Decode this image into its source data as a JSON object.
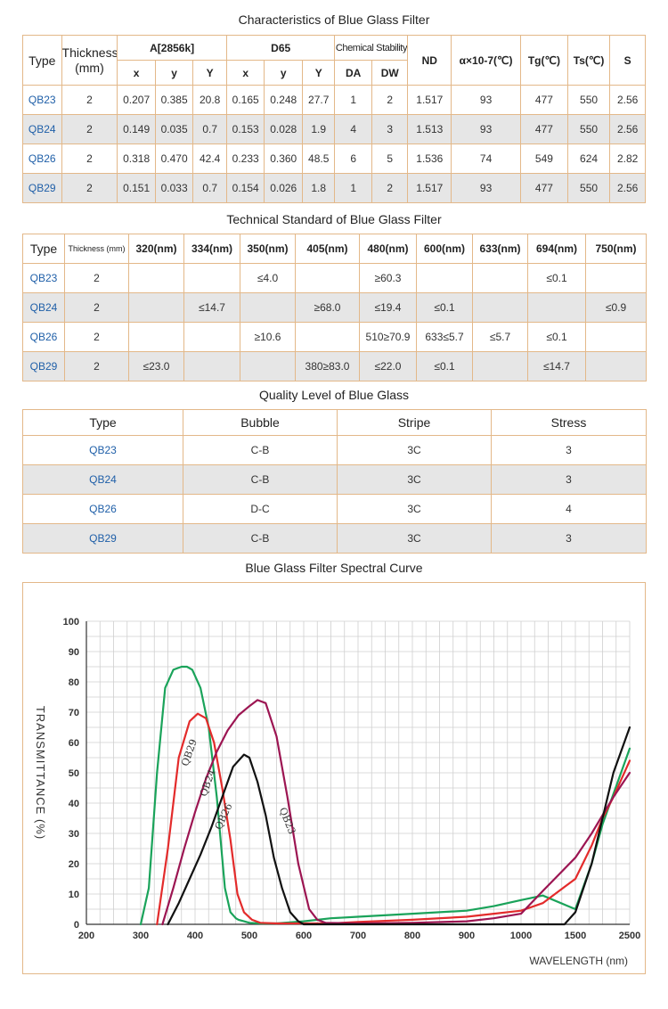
{
  "table1": {
    "title": "Characteristics of  Blue Glass Filter",
    "headers": {
      "type": "Type",
      "thickness": "Thickness (mm)",
      "a2856k": "A[2856k]",
      "d65": "D65",
      "chemical_stability": "Chemical Stability",
      "x": "x",
      "y": "y",
      "Y": "Y",
      "da": "DA",
      "dw": "DW",
      "nd": "ND",
      "alpha": "α×10-7(℃)",
      "tg": "Tg(℃)",
      "ts": "Ts(℃)",
      "s": "S"
    },
    "rows": [
      [
        "QB23",
        "2",
        "0.207",
        "0.385",
        "20.8",
        "0.165",
        "0.248",
        "27.7",
        "1",
        "2",
        "1.517",
        "93",
        "477",
        "550",
        "2.56"
      ],
      [
        "QB24",
        "2",
        "0.149",
        "0.035",
        "0.7",
        "0.153",
        "0.028",
        "1.9",
        "4",
        "3",
        "1.513",
        "93",
        "477",
        "550",
        "2.56"
      ],
      [
        "QB26",
        "2",
        "0.318",
        "0.470",
        "42.4",
        "0.233",
        "0.360",
        "48.5",
        "6",
        "5",
        "1.536",
        "74",
        "549",
        "624",
        "2.82"
      ],
      [
        "QB29",
        "2",
        "0.151",
        "0.033",
        "0.7",
        "0.154",
        "0.026",
        "1.8",
        "1",
        "2",
        "1.517",
        "93",
        "477",
        "550",
        "2.56"
      ]
    ]
  },
  "table2": {
    "title": "Technical Standard of Blue Glass Filter",
    "headers": [
      "Type",
      "Thickness (mm)",
      "320(nm)",
      "334(nm)",
      "350(nm)",
      "405(nm)",
      "480(nm)",
      "600(nm)",
      "633(nm)",
      "694(nm)",
      "750(nm)"
    ],
    "rows": [
      [
        "QB23",
        "2",
        "",
        "",
        "≤4.0",
        "",
        "≥60.3",
        "",
        "",
        "≤0.1",
        ""
      ],
      [
        "QB24",
        "2",
        "",
        "≤14.7",
        "",
        "≥68.0",
        "≤19.4",
        "≤0.1",
        "",
        "",
        "≤0.9"
      ],
      [
        "QB26",
        "2",
        "",
        "",
        "≥10.6",
        "",
        "510≥70.9",
        "633≤5.7",
        "≤5.7",
        "≤0.1",
        ""
      ],
      [
        "QB29",
        "2",
        "≤23.0",
        "",
        "",
        "380≥83.0",
        "≤22.0",
        "≤0.1",
        "",
        "≤14.7",
        ""
      ]
    ]
  },
  "table3": {
    "title": "Quality Level of Blue Glass",
    "headers": [
      "Type",
      "Bubble",
      "Stripe",
      "Stress"
    ],
    "rows": [
      [
        "QB23",
        "C-B",
        "3C",
        "3"
      ],
      [
        "QB24",
        "C-B",
        "3C",
        "3"
      ],
      [
        "QB26",
        "D-C",
        "3C",
        "4"
      ],
      [
        "QB29",
        "C-B",
        "3C",
        "3"
      ]
    ]
  },
  "chart_title": "Blue Glass Filter Spectral Curve",
  "chart_data": {
    "type": "line",
    "title": "",
    "xlabel": "WAVELENGTH (nm)",
    "ylabel": "TRANSMITTANCE  (%)",
    "x_ticks": [
      "200",
      "300",
      "400",
      "500",
      "600",
      "700",
      "800",
      "900",
      "1000",
      "1500",
      "2500"
    ],
    "y_ticks": [
      0,
      10,
      20,
      30,
      40,
      50,
      60,
      70,
      80,
      90,
      100
    ],
    "ylim": [
      0,
      100
    ],
    "grid": true,
    "series": [
      {
        "name": "QB29",
        "color": "#1aa35a",
        "x": [
          300,
          315,
          330,
          345,
          360,
          375,
          385,
          395,
          410,
          425,
          440,
          455,
          465,
          475,
          480,
          490,
          500,
          520,
          550,
          600,
          650,
          700,
          800,
          900,
          950,
          1000,
          1200,
          1500,
          1800,
          2000,
          2200,
          2500
        ],
        "y": [
          0,
          12,
          50,
          78,
          84,
          85,
          85,
          84,
          78,
          65,
          42,
          12,
          4,
          2,
          1.5,
          1,
          0.5,
          0.3,
          0.3,
          1,
          2,
          2.5,
          3.5,
          4.5,
          6,
          8,
          9.5,
          5,
          20,
          33,
          43,
          58
        ]
      },
      {
        "name": "QB24",
        "color": "#e32b2b",
        "x": [
          330,
          350,
          370,
          390,
          405,
          420,
          435,
          450,
          465,
          478,
          490,
          505,
          520,
          550,
          600,
          650,
          700,
          800,
          900,
          950,
          1000,
          1200,
          1500,
          1800,
          2000,
          2200,
          2500
        ],
        "y": [
          0,
          25,
          55,
          67,
          69.5,
          68,
          60,
          45,
          28,
          10,
          4,
          1.5,
          0.5,
          0.3,
          0.3,
          0.3,
          0.8,
          1.5,
          2.5,
          3.5,
          4.5,
          7,
          15,
          26,
          35,
          42,
          54
        ]
      },
      {
        "name": "QB26",
        "color": "#9c1552",
        "x": [
          340,
          360,
          380,
          400,
          420,
          440,
          460,
          480,
          500,
          515,
          530,
          550,
          570,
          590,
          610,
          625,
          640,
          700,
          800,
          900,
          950,
          1000,
          1200,
          1500,
          1800,
          2000,
          2200,
          2500
        ],
        "y": [
          0,
          12,
          25,
          37,
          48,
          57,
          64,
          69,
          72,
          74,
          73,
          62,
          42,
          20,
          5,
          1.5,
          0.5,
          0.3,
          0.5,
          1,
          2,
          3.5,
          11,
          22,
          30,
          36,
          42,
          50
        ]
      },
      {
        "name": "QB23",
        "color": "#111111",
        "x": [
          350,
          370,
          390,
          410,
          430,
          450,
          470,
          490,
          500,
          515,
          530,
          545,
          560,
          575,
          590,
          600,
          650,
          700,
          900,
          1000,
          1200,
          1400,
          1500,
          1800,
          2000,
          2200,
          2500
        ],
        "y": [
          0,
          7,
          15,
          23,
          32,
          42,
          52,
          56,
          55,
          47,
          36,
          22,
          12,
          4,
          1,
          0,
          0,
          0,
          0,
          0,
          0,
          0,
          4,
          20,
          35,
          50,
          65
        ]
      }
    ]
  }
}
